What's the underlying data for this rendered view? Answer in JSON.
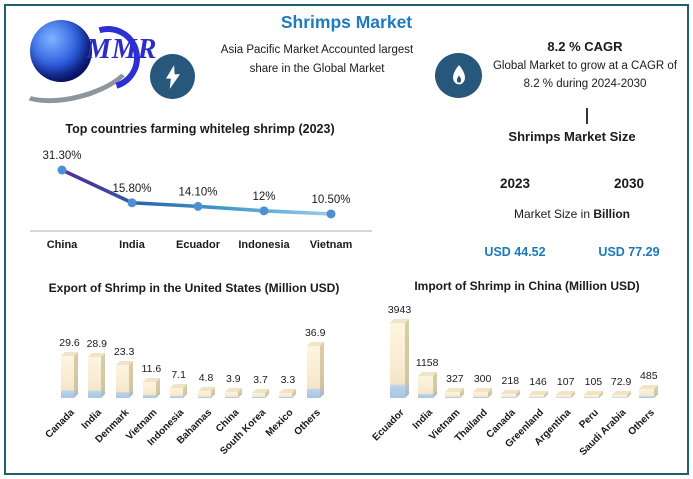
{
  "colors": {
    "frame_border": "#20606b",
    "title_blue": "#1e7bbf",
    "usd_blue": "#1b79bd",
    "icon_circle": "#27577b",
    "bar_cream": "#f8ecd2",
    "bar_blue_band": "#aac6e2",
    "line_start_purple": "#5b2d90",
    "line_end_blue": "#9ec9e8",
    "marker_blue": "#4f90d5"
  },
  "header": {
    "title": "Shrimps Market",
    "logo_text": "MMR",
    "highlight": "Asia Pacific Market Accounted largest share in the Global Market",
    "cagr_title": "8.2 % CAGR",
    "cagr_desc": "Global Market to grow at a CAGR of 8.2 % during 2024-2030"
  },
  "market_size": {
    "title": "Shrimps Market Size",
    "year_left": "2023",
    "year_right": "2030",
    "label_prefix": "Market Size in ",
    "label_bold": "Billion",
    "value_left": "USD 44.52",
    "value_right": "USD 77.29"
  },
  "chart_data": [
    {
      "type": "line",
      "title": "Top countries farming whiteleg shrimp (2023)",
      "categories": [
        "China",
        "India",
        "Ecuador",
        "Indonesia",
        "Vietnam"
      ],
      "values": [
        31.3,
        15.8,
        14.1,
        12,
        10.5
      ],
      "labels": [
        "31.30%",
        "15.80%",
        "14.10%",
        "12%",
        "10.50%"
      ],
      "ylim": [
        0,
        35
      ],
      "unit": "percent",
      "grid": false,
      "legend": "none"
    },
    {
      "type": "bar",
      "title": "Export of Shrimp in the United States (Million USD)",
      "categories": [
        "Canada",
        "India",
        "Denmark",
        "Vietnam",
        "Indonesia",
        "Bahamas",
        "China",
        "South Korea",
        "Mexico",
        "Others"
      ],
      "values": [
        29.6,
        28.9,
        23.3,
        11.6,
        7.1,
        4.8,
        3.9,
        3.7,
        3.3,
        36.9
      ],
      "labels": [
        "29.6",
        "28.9",
        "23.3",
        "11.6",
        "7.1",
        "4.8",
        "3.9",
        "3.7",
        "3.3",
        "36.9"
      ],
      "ylim": [
        0,
        40
      ],
      "unit": "Million USD",
      "grid": false,
      "legend": "none"
    },
    {
      "type": "bar",
      "title": "Import of Shrimp in China (Million USD)",
      "categories": [
        "Ecuador",
        "India",
        "Vietnam",
        "Thailand",
        "Canada",
        "Greenland",
        "Argentina",
        "Peru",
        "Saudi Arabia",
        "Others"
      ],
      "values": [
        3943,
        1158,
        327,
        300,
        218,
        146,
        107,
        105,
        72.9,
        485
      ],
      "labels": [
        "3943",
        "1158",
        "327",
        "300",
        "218",
        "146",
        "107",
        "105",
        "72.9",
        "485"
      ],
      "ylim": [
        0,
        4000
      ],
      "unit": "Million USD",
      "grid": false,
      "legend": "none"
    }
  ]
}
